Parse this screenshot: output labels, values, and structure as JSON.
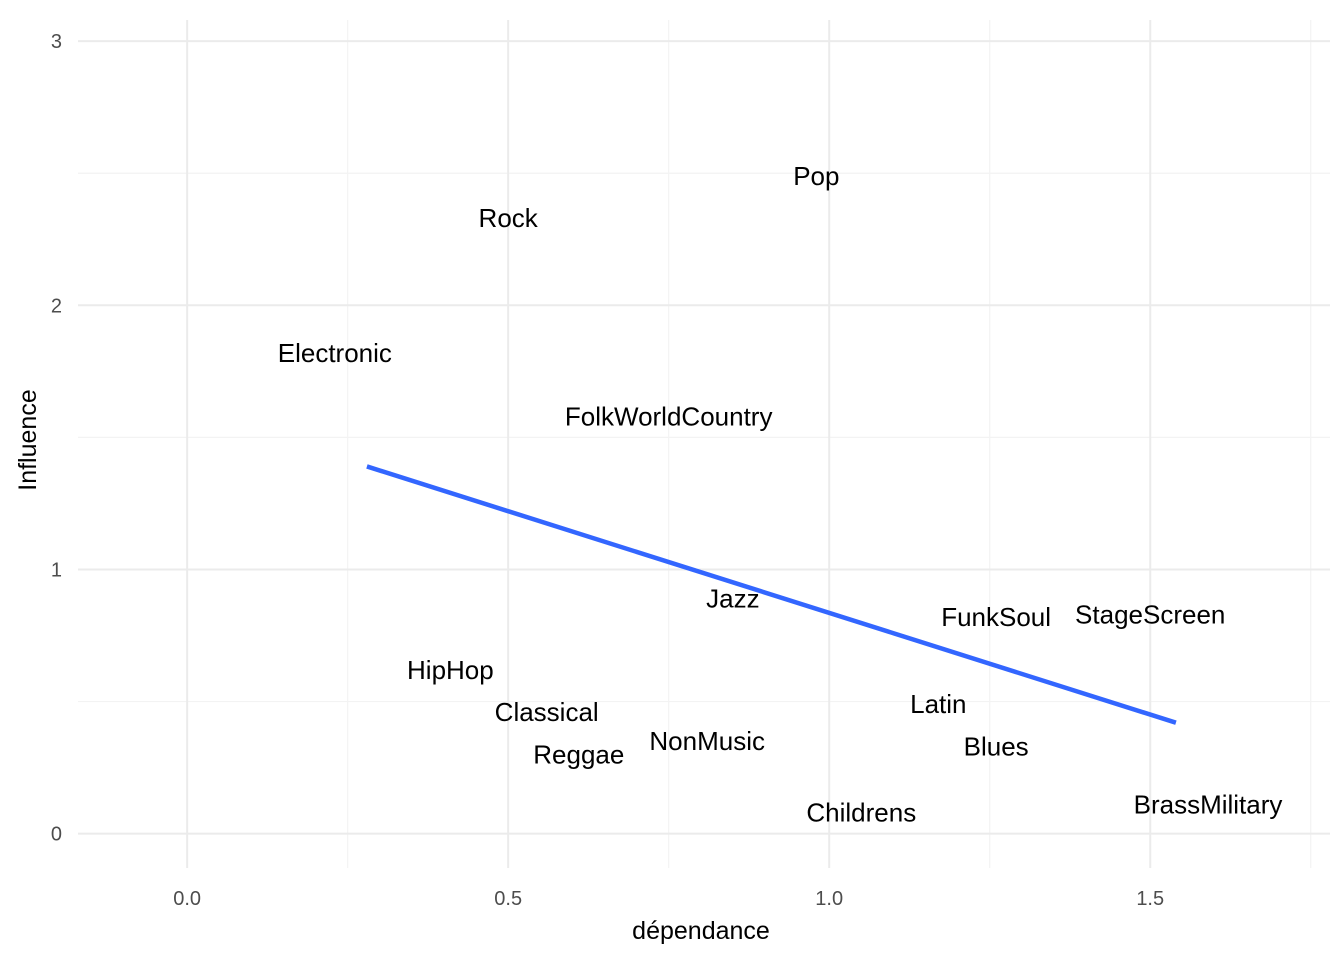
{
  "chart_data": {
    "type": "scatter",
    "title": "",
    "xlabel": "dépendance",
    "ylabel": "Influence",
    "xlim": [
      -0.17,
      1.78
    ],
    "ylim": [
      -0.13,
      3.08
    ],
    "x_ticks": [
      0.0,
      0.5,
      1.0,
      1.5
    ],
    "x_tick_labels": [
      "0.0",
      "0.5",
      "1.0",
      "1.5"
    ],
    "y_ticks": [
      0,
      1,
      2,
      3
    ],
    "y_tick_labels": [
      "0",
      "1",
      "2",
      "3"
    ],
    "grid": true,
    "points": [
      {
        "label": "Pop",
        "x": 0.98,
        "y": 2.49
      },
      {
        "label": "Rock",
        "x": 0.5,
        "y": 2.33
      },
      {
        "label": "Electronic",
        "x": 0.23,
        "y": 1.82
      },
      {
        "label": "FolkWorldCountry",
        "x": 0.75,
        "y": 1.58
      },
      {
        "label": "Jazz",
        "x": 0.85,
        "y": 0.89
      },
      {
        "label": "FunkSoul",
        "x": 1.26,
        "y": 0.82
      },
      {
        "label": "StageScreen",
        "x": 1.5,
        "y": 0.83
      },
      {
        "label": "HipHop",
        "x": 0.41,
        "y": 0.62
      },
      {
        "label": "Latin",
        "x": 1.17,
        "y": 0.49
      },
      {
        "label": "Classical",
        "x": 0.56,
        "y": 0.46
      },
      {
        "label": "NonMusic",
        "x": 0.81,
        "y": 0.35
      },
      {
        "label": "Reggae",
        "x": 0.61,
        "y": 0.3
      },
      {
        "label": "Blues",
        "x": 1.26,
        "y": 0.33
      },
      {
        "label": "Childrens",
        "x": 1.05,
        "y": 0.08
      },
      {
        "label": "BrassMilitary",
        "x": 1.59,
        "y": 0.11
      }
    ],
    "trend_line": {
      "color": "#3366FF",
      "x": [
        0.28,
        1.54
      ],
      "y": [
        1.39,
        0.42
      ]
    }
  }
}
